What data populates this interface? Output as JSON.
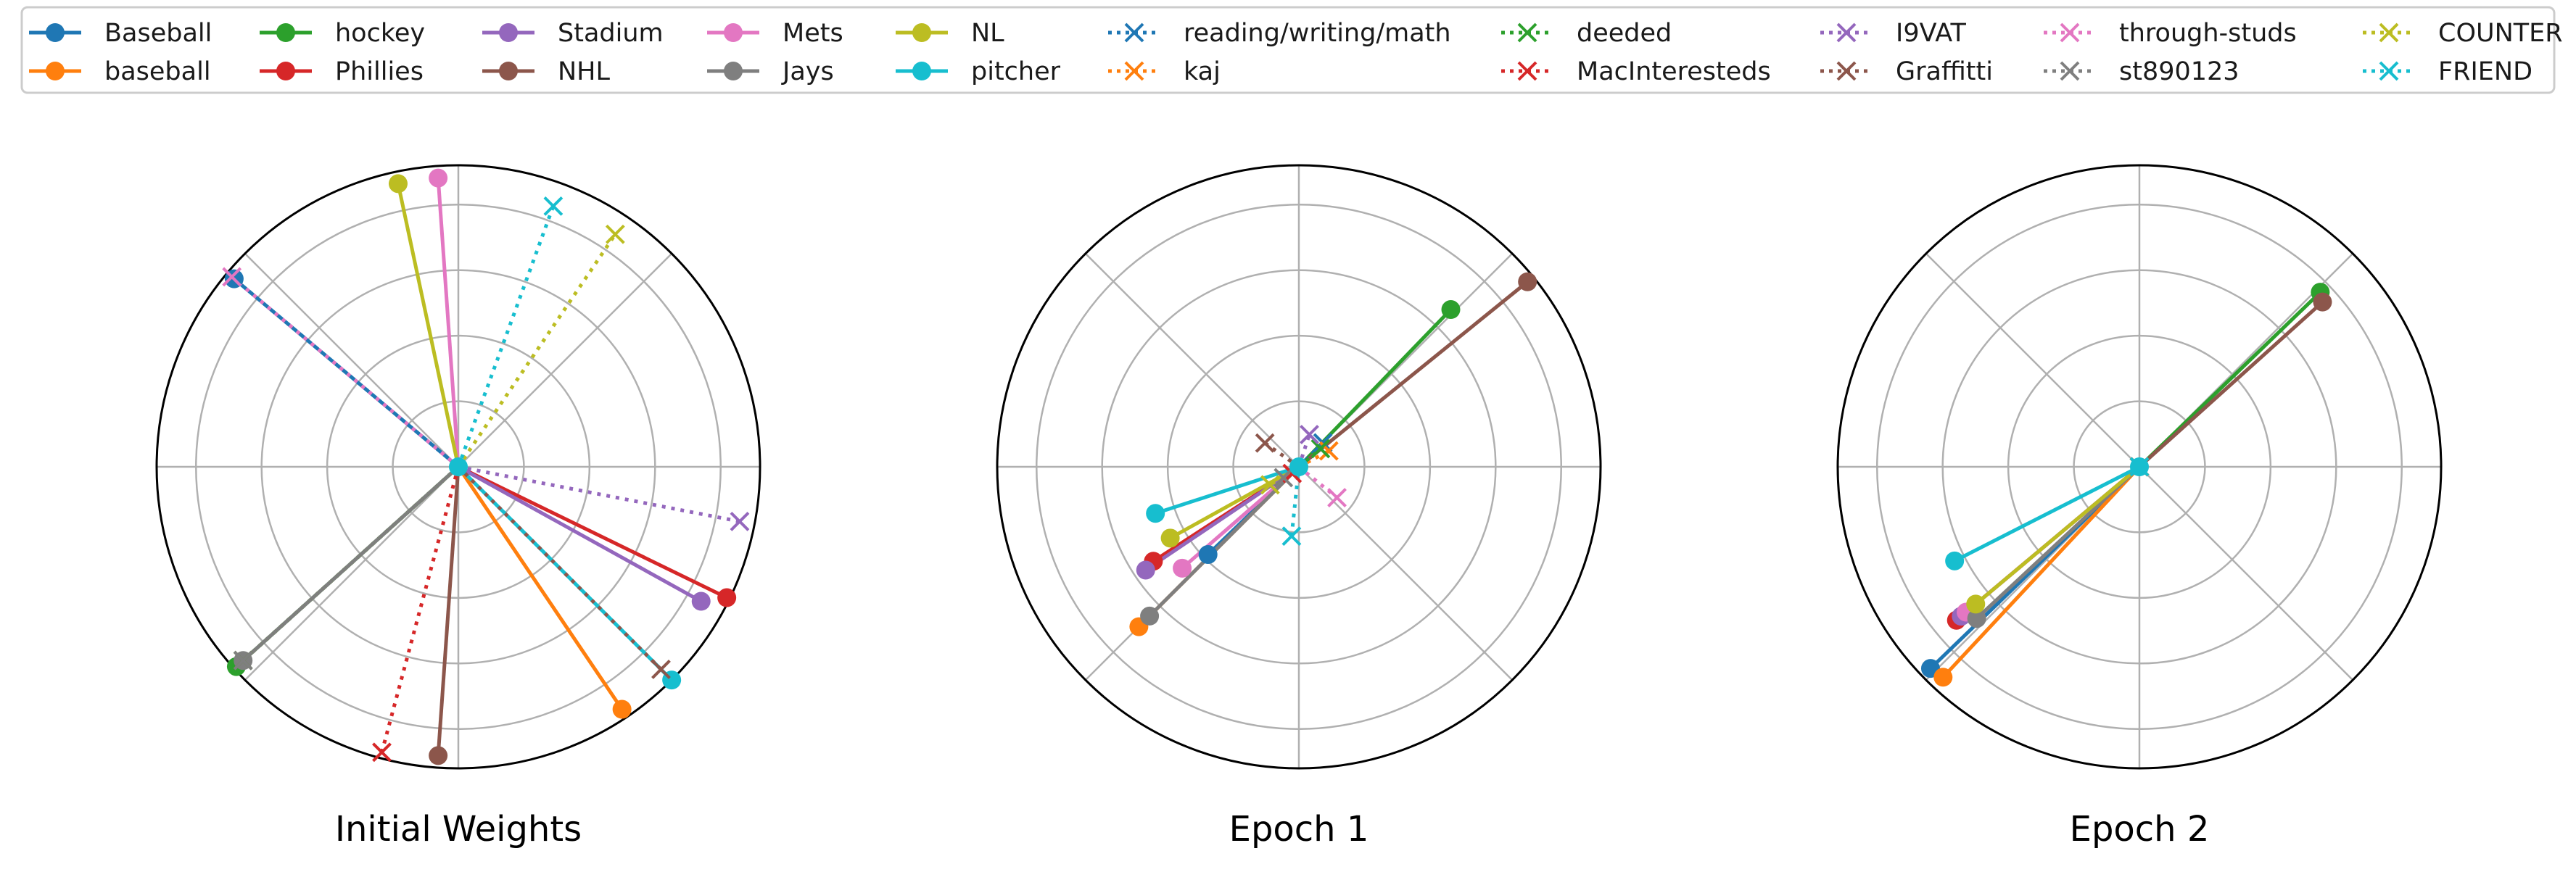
{
  "chart_data": [
    {
      "type": "polar",
      "title": "Initial Weights",
      "rlim": [
        0,
        1.0
      ],
      "grid": true,
      "points": [
        {
          "series": "Baseball",
          "theta": 140,
          "r": 0.97
        },
        {
          "series": "baseball",
          "theta": 304,
          "r": 0.97
        },
        {
          "series": "hockey",
          "theta": 222,
          "r": 0.99
        },
        {
          "series": "Phillies",
          "theta": 334,
          "r": 0.99
        },
        {
          "series": "Stadium",
          "theta": 331,
          "r": 0.92
        },
        {
          "series": "NHL",
          "theta": 266,
          "r": 0.96
        },
        {
          "series": "Mets",
          "theta": 94,
          "r": 0.96
        },
        {
          "series": "Jays",
          "theta": 222,
          "r": 0.96
        },
        {
          "series": "NL",
          "theta": 102,
          "r": 0.96
        },
        {
          "series": "pitcher",
          "theta": 315,
          "r": 1.0
        },
        {
          "series": "reading/writing/math",
          "theta": 222,
          "r": 0.96
        },
        {
          "series": "kaj",
          "theta": 222,
          "r": 0.96
        },
        {
          "series": "deeded",
          "theta": 222,
          "r": 0.96
        },
        {
          "series": "MacInteresteds",
          "theta": 255,
          "r": 0.98
        },
        {
          "series": "I9VAT",
          "theta": 349,
          "r": 0.95
        },
        {
          "series": "Graffitti",
          "theta": 315,
          "r": 0.95
        },
        {
          "series": "through-studs",
          "theta": 140,
          "r": 0.98
        },
        {
          "series": "st890123",
          "theta": 222,
          "r": 0.96
        },
        {
          "series": "COUNTER",
          "theta": 56,
          "r": 0.93
        },
        {
          "series": "FRIEND",
          "theta": 70,
          "r": 0.92
        }
      ]
    },
    {
      "type": "polar",
      "title": "Epoch 1",
      "rlim": [
        0,
        1.6
      ],
      "grid": true,
      "points": [
        {
          "series": "Baseball",
          "theta": 224,
          "r": 0.67
        },
        {
          "series": "baseball",
          "theta": 225,
          "r": 1.2
        },
        {
          "series": "hockey",
          "theta": 46,
          "r": 1.16
        },
        {
          "series": "Phillies",
          "theta": 213,
          "r": 0.92
        },
        {
          "series": "Stadium",
          "theta": 214,
          "r": 0.98
        },
        {
          "series": "NHL",
          "theta": 39,
          "r": 1.56
        },
        {
          "series": "Mets",
          "theta": 221,
          "r": 0.82
        },
        {
          "series": "Jays",
          "theta": 225,
          "r": 1.12
        },
        {
          "series": "NL",
          "theta": 209,
          "r": 0.78
        },
        {
          "series": "pitcher",
          "theta": 198,
          "r": 0.8
        },
        {
          "series": "reading/writing/math",
          "theta": 45,
          "r": 0.18
        },
        {
          "series": "kaj",
          "theta": 28,
          "r": 0.18
        },
        {
          "series": "deeded",
          "theta": 40,
          "r": 0.15
        },
        {
          "series": "MacInteresteds",
          "theta": 225,
          "r": 0.05
        },
        {
          "series": "I9VAT",
          "theta": 72,
          "r": 0.18
        },
        {
          "series": "Graffitti",
          "theta": 145,
          "r": 0.22
        },
        {
          "series": "through-studs",
          "theta": 321,
          "r": 0.26
        },
        {
          "series": "st890123",
          "theta": 215,
          "r": 0.1
        },
        {
          "series": "COUNTER",
          "theta": 212,
          "r": 0.18
        },
        {
          "series": "FRIEND",
          "theta": 264,
          "r": 0.37
        }
      ]
    },
    {
      "type": "polar",
      "title": "Epoch 2",
      "rlim": [
        0,
        2.4
      ],
      "grid": true,
      "points": [
        {
          "series": "Baseball",
          "theta": 224,
          "r": 2.31
        },
        {
          "series": "baseball",
          "theta": 227,
          "r": 2.29
        },
        {
          "series": "hockey",
          "theta": 44,
          "r": 2.0
        },
        {
          "series": "Phillies",
          "theta": 220,
          "r": 1.9
        },
        {
          "series": "Stadium",
          "theta": 220,
          "r": 1.85
        },
        {
          "series": "NHL",
          "theta": 42,
          "r": 1.96
        },
        {
          "series": "Mets",
          "theta": 220,
          "r": 1.8
        },
        {
          "series": "Jays",
          "theta": 223,
          "r": 1.77
        },
        {
          "series": "NL",
          "theta": 220,
          "r": 1.7
        },
        {
          "series": "pitcher",
          "theta": 207,
          "r": 1.65
        },
        {
          "series": "reading/writing/math",
          "theta": 0,
          "r": 0
        },
        {
          "series": "kaj",
          "theta": 0,
          "r": 0
        },
        {
          "series": "deeded",
          "theta": 0,
          "r": 0
        },
        {
          "series": "MacInteresteds",
          "theta": 0,
          "r": 0
        },
        {
          "series": "I9VAT",
          "theta": 0,
          "r": 0
        },
        {
          "series": "Graffitti",
          "theta": 0,
          "r": 0
        },
        {
          "series": "through-studs",
          "theta": 0,
          "r": 0
        },
        {
          "series": "st890123",
          "theta": 0,
          "r": 0
        },
        {
          "series": "COUNTER",
          "theta": 0,
          "r": 0
        },
        {
          "series": "FRIEND",
          "theta": 0,
          "r": 0
        }
      ]
    }
  ],
  "legend": {
    "placement": "top",
    "entries": [
      {
        "name": "Baseball",
        "color": "#1f77b4",
        "marker": "circle",
        "line": "solid"
      },
      {
        "name": "baseball",
        "color": "#ff7f0e",
        "marker": "circle",
        "line": "solid"
      },
      {
        "name": "hockey",
        "color": "#2ca02c",
        "marker": "circle",
        "line": "solid"
      },
      {
        "name": "Phillies",
        "color": "#d62728",
        "marker": "circle",
        "line": "solid"
      },
      {
        "name": "Stadium",
        "color": "#9467bd",
        "marker": "circle",
        "line": "solid"
      },
      {
        "name": "NHL",
        "color": "#8c564b",
        "marker": "circle",
        "line": "solid"
      },
      {
        "name": "Mets",
        "color": "#e377c2",
        "marker": "circle",
        "line": "solid"
      },
      {
        "name": "Jays",
        "color": "#7f7f7f",
        "marker": "circle",
        "line": "solid"
      },
      {
        "name": "NL",
        "color": "#bcbd22",
        "marker": "circle",
        "line": "solid"
      },
      {
        "name": "pitcher",
        "color": "#17becf",
        "marker": "circle",
        "line": "solid"
      },
      {
        "name": "reading/writing/math",
        "color": "#1f77b4",
        "marker": "x",
        "line": "dotted"
      },
      {
        "name": "kaj",
        "color": "#ff7f0e",
        "marker": "x",
        "line": "dotted"
      },
      {
        "name": "deeded",
        "color": "#2ca02c",
        "marker": "x",
        "line": "dotted"
      },
      {
        "name": "MacInteresteds",
        "color": "#d62728",
        "marker": "x",
        "line": "dotted"
      },
      {
        "name": "I9VAT",
        "color": "#9467bd",
        "marker": "x",
        "line": "dotted"
      },
      {
        "name": "Graffitti",
        "color": "#8c564b",
        "marker": "x",
        "line": "dotted"
      },
      {
        "name": "through-studs",
        "color": "#e377c2",
        "marker": "x",
        "line": "dotted"
      },
      {
        "name": "st890123",
        "color": "#7f7f7f",
        "marker": "x",
        "line": "dotted"
      },
      {
        "name": "COUNTER",
        "color": "#bcbd22",
        "marker": "x",
        "line": "dotted"
      },
      {
        "name": "FRIEND",
        "color": "#17becf",
        "marker": "x",
        "line": "dotted"
      }
    ]
  }
}
